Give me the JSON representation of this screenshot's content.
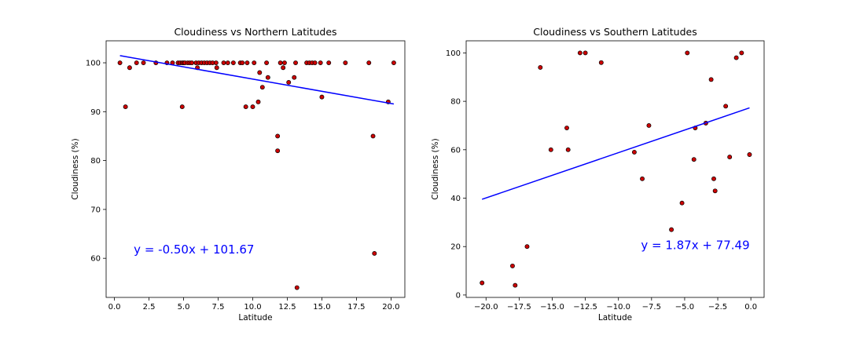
{
  "chart_data": [
    {
      "type": "scatter",
      "title": "Cloudiness vs Northern Latitudes",
      "xlabel": "Latitude",
      "ylabel": "Cloudiness (%)",
      "xlim": [
        -0.6,
        21.0
      ],
      "ylim": [
        52,
        104.5
      ],
      "xticks": [
        0.0,
        2.5,
        5.0,
        7.5,
        10.0,
        12.5,
        15.0,
        17.5,
        20.0
      ],
      "xtick_labels": [
        "0.0",
        "2.5",
        "5.0",
        "7.5",
        "10.0",
        "12.5",
        "15.0",
        "17.5",
        "20.0"
      ],
      "yticks": [
        60,
        70,
        80,
        90,
        100
      ],
      "ytick_labels": [
        "60",
        "70",
        "80",
        "90",
        "100"
      ],
      "grid": false,
      "point_color": "#cc0000",
      "point_edge_color": "#000000",
      "line_color": "#0000ff",
      "points": [
        [
          0.4,
          100
        ],
        [
          0.8,
          91
        ],
        [
          1.1,
          99
        ],
        [
          1.6,
          100
        ],
        [
          2.1,
          100
        ],
        [
          3.0,
          100
        ],
        [
          3.8,
          100
        ],
        [
          4.2,
          100
        ],
        [
          4.6,
          100
        ],
        [
          4.75,
          100
        ],
        [
          4.9,
          100
        ],
        [
          5.0,
          100
        ],
        [
          5.1,
          100
        ],
        [
          5.3,
          100
        ],
        [
          5.45,
          100
        ],
        [
          5.6,
          100
        ],
        [
          5.9,
          100
        ],
        [
          6.1,
          100
        ],
        [
          6.3,
          100
        ],
        [
          6.5,
          100
        ],
        [
          6.7,
          100
        ],
        [
          6.9,
          100
        ],
        [
          7.1,
          100
        ],
        [
          7.35,
          100
        ],
        [
          7.9,
          100
        ],
        [
          8.2,
          100
        ],
        [
          8.6,
          100
        ],
        [
          9.1,
          100
        ],
        [
          9.25,
          100
        ],
        [
          9.6,
          100
        ],
        [
          10.1,
          100
        ],
        [
          11.0,
          100
        ],
        [
          12.0,
          100
        ],
        [
          12.3,
          100
        ],
        [
          13.1,
          100
        ],
        [
          13.9,
          100
        ],
        [
          14.1,
          100
        ],
        [
          14.3,
          100
        ],
        [
          14.5,
          100
        ],
        [
          14.9,
          100
        ],
        [
          15.5,
          100
        ],
        [
          16.7,
          100
        ],
        [
          18.4,
          100
        ],
        [
          20.2,
          100
        ],
        [
          6.0,
          99
        ],
        [
          7.4,
          99
        ],
        [
          12.2,
          99
        ],
        [
          10.5,
          98
        ],
        [
          11.1,
          97
        ],
        [
          13.0,
          97
        ],
        [
          12.6,
          96
        ],
        [
          10.7,
          95
        ],
        [
          15.0,
          93
        ],
        [
          10.4,
          92
        ],
        [
          19.8,
          92
        ],
        [
          4.9,
          91
        ],
        [
          9.5,
          91
        ],
        [
          10.0,
          91
        ],
        [
          11.8,
          85
        ],
        [
          18.7,
          85
        ],
        [
          11.8,
          82
        ],
        [
          18.8,
          61
        ],
        [
          13.2,
          54
        ]
      ],
      "regression": {
        "slope": -0.5,
        "intercept": 101.67,
        "x_range": [
          0.4,
          20.2
        ]
      },
      "annotation": "y = -0.50x + 101.67",
      "annotation_color": "#0000ff",
      "annotation_at": [
        1.4,
        61.0
      ]
    },
    {
      "type": "scatter",
      "title": "Cloudiness vs Southern Latitudes",
      "xlabel": "Latitude",
      "ylabel": "Cloudiness (%)",
      "xlim": [
        -21.5,
        1.0
      ],
      "ylim": [
        -1,
        105
      ],
      "xticks": [
        -20.0,
        -17.5,
        -15.0,
        -12.5,
        -10.0,
        -7.5,
        -5.0,
        -2.5,
        0.0
      ],
      "xtick_labels": [
        "−20.0",
        "−17.5",
        "−15.0",
        "−12.5",
        "−10.0",
        "−7.5",
        "−5.0",
        "−2.5",
        "0.0"
      ],
      "yticks": [
        0,
        20,
        40,
        60,
        80,
        100
      ],
      "ytick_labels": [
        "0",
        "20",
        "40",
        "60",
        "80",
        "100"
      ],
      "grid": false,
      "point_color": "#cc0000",
      "point_edge_color": "#000000",
      "line_color": "#0000ff",
      "points": [
        [
          -20.3,
          5
        ],
        [
          -18.0,
          12
        ],
        [
          -17.8,
          4
        ],
        [
          -16.9,
          20
        ],
        [
          -15.9,
          94
        ],
        [
          -15.1,
          60
        ],
        [
          -13.9,
          69
        ],
        [
          -13.8,
          60
        ],
        [
          -12.9,
          100
        ],
        [
          -12.5,
          100
        ],
        [
          -11.3,
          96
        ],
        [
          -8.8,
          59
        ],
        [
          -8.2,
          48
        ],
        [
          -7.7,
          70
        ],
        [
          -6.0,
          27
        ],
        [
          -5.2,
          38
        ],
        [
          -4.8,
          100
        ],
        [
          -4.3,
          56
        ],
        [
          -4.2,
          69
        ],
        [
          -3.4,
          71
        ],
        [
          -3.0,
          89
        ],
        [
          -2.8,
          48
        ],
        [
          -2.7,
          43
        ],
        [
          -1.9,
          78
        ],
        [
          -1.6,
          57
        ],
        [
          -1.1,
          98
        ],
        [
          -0.7,
          100
        ],
        [
          -0.1,
          58
        ]
      ],
      "regression": {
        "slope": 1.87,
        "intercept": 77.49,
        "x_range": [
          -20.3,
          -0.1
        ]
      },
      "annotation": "y = 1.87x + 77.49",
      "annotation_color": "#0000ff",
      "annotation_at": [
        -8.3,
        19.0
      ]
    }
  ]
}
